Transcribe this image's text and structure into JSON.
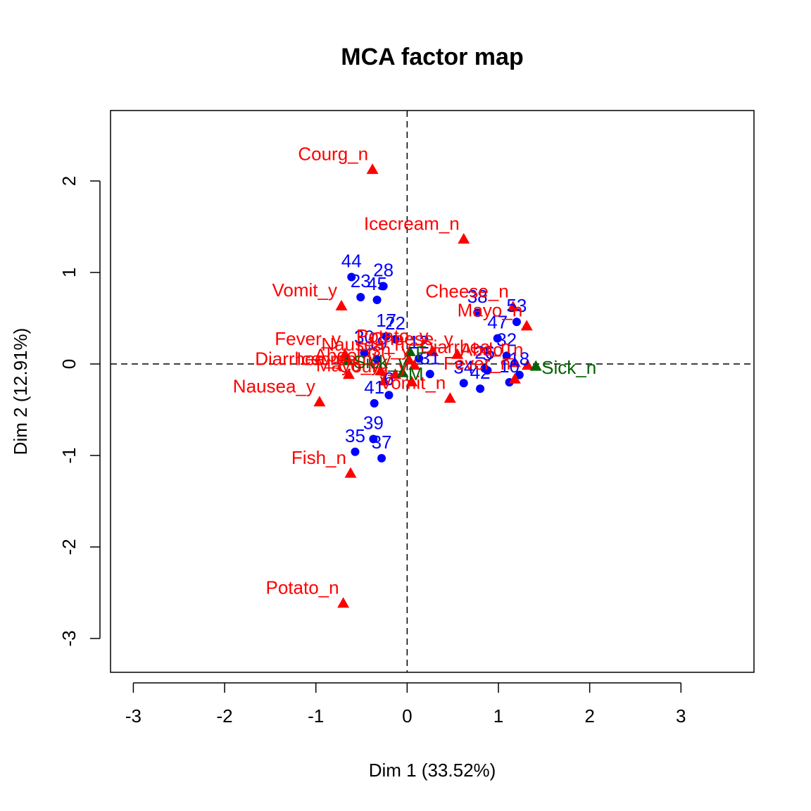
{
  "chart_data": {
    "type": "scatter",
    "title": "MCA factor map",
    "xlabel": "Dim 1 (33.52%)",
    "ylabel": "Dim 2 (12.91%)",
    "xlim": [
      -3.25,
      3.8
    ],
    "ylim": [
      -3.37,
      2.77
    ],
    "x_ticks": [
      -3,
      -2,
      -1,
      0,
      1,
      2,
      3
    ],
    "y_ticks": [
      -3,
      -2,
      -1,
      0,
      1,
      2
    ],
    "x_tick_labels": [
      "-3",
      "-2",
      "-1",
      "0",
      "1",
      "2",
      "3"
    ],
    "y_tick_labels": [
      "-3",
      "-2",
      "-1",
      "0",
      "1",
      "2"
    ],
    "reference_lines": {
      "x": 0,
      "y": 0,
      "style": "dashed"
    },
    "colors": {
      "individuals": "#0000ff",
      "active_categories": "#ff0000",
      "supplementary_categories": "#006400"
    },
    "series": [
      {
        "role": "individuals",
        "marker": "circle",
        "points": [
          {
            "label": "44",
            "x": -0.61,
            "y": 0.95
          },
          {
            "label": "28",
            "x": -0.26,
            "y": 0.85
          },
          {
            "label": "23",
            "x": -0.51,
            "y": 0.73
          },
          {
            "label": "45",
            "x": -0.33,
            "y": 0.7
          },
          {
            "label": "38",
            "x": 0.77,
            "y": 0.56
          },
          {
            "label": "53",
            "x": 1.2,
            "y": 0.46
          },
          {
            "label": "47",
            "x": 0.99,
            "y": 0.28
          },
          {
            "label": "32",
            "x": 1.09,
            "y": 0.09
          },
          {
            "label": "17",
            "x": -0.23,
            "y": 0.3
          },
          {
            "label": "22",
            "x": -0.13,
            "y": 0.27
          },
          {
            "label": "12",
            "x": 0.13,
            "y": 0.06
          },
          {
            "label": "5",
            "x": 0.88,
            "y": -0.07
          },
          {
            "label": "26",
            "x": 0.85,
            "y": -0.05
          },
          {
            "label": "10",
            "x": 1.12,
            "y": -0.2
          },
          {
            "label": "18",
            "x": 1.23,
            "y": -0.12
          },
          {
            "label": "34",
            "x": 0.62,
            "y": -0.21
          },
          {
            "label": "42",
            "x": 0.8,
            "y": -0.27
          },
          {
            "label": "31",
            "x": 0.25,
            "y": -0.11
          },
          {
            "label": "30",
            "x": -0.47,
            "y": 0.12
          },
          {
            "label": "19",
            "x": -0.33,
            "y": 0.05
          },
          {
            "label": "41",
            "x": -0.36,
            "y": -0.43
          },
          {
            "label": "6",
            "x": -0.2,
            "y": -0.34
          },
          {
            "label": "39",
            "x": -0.37,
            "y": -0.82
          },
          {
            "label": "35",
            "x": -0.57,
            "y": -0.96
          },
          {
            "label": "37",
            "x": -0.28,
            "y": -1.03
          }
        ]
      },
      {
        "role": "active_categories",
        "marker": "triangle",
        "points": [
          {
            "label": "Courg_n",
            "x": -0.38,
            "y": 2.12
          },
          {
            "label": "Icecream_n",
            "x": 0.62,
            "y": 1.36
          },
          {
            "label": "Cheese_n",
            "x": 1.16,
            "y": 0.62
          },
          {
            "label": "Mayo_n",
            "x": 1.31,
            "y": 0.41
          },
          {
            "label": "Vomit_y",
            "x": -0.72,
            "y": 0.63
          },
          {
            "label": "Potato_y",
            "x": 0.28,
            "y": 0.13
          },
          {
            "label": "Nausea_n",
            "x": 0.02,
            "y": 0.04
          },
          {
            "label": "Cheese_y",
            "x": 0.55,
            "y": 0.1
          },
          {
            "label": "Fever_y",
            "x": -0.68,
            "y": 0.1
          },
          {
            "label": "Abdo_y",
            "x": -0.29,
            "y": -0.08
          },
          {
            "label": "Diarrhea_y",
            "x": -0.64,
            "y": -0.12
          },
          {
            "label": "Diarrhea_n",
            "x": 1.18,
            "y": 0.01
          },
          {
            "label": "Abdo_n",
            "x": 1.32,
            "y": -0.02
          },
          {
            "label": "Icecream_y",
            "x": -0.13,
            "y": -0.12
          },
          {
            "label": "Mayo_y",
            "x": -0.25,
            "y": -0.19
          },
          {
            "label": "Courg_y",
            "x": 0.05,
            "y": -0.2
          },
          {
            "label": "Fish_y",
            "x": 0.08,
            "y": -0.02
          },
          {
            "label": "Fever_n",
            "x": 1.18,
            "y": -0.17
          },
          {
            "label": "Vomit_n",
            "x": 0.47,
            "y": -0.38
          },
          {
            "label": "Nausea_y",
            "x": -0.96,
            "y": -0.42
          },
          {
            "label": "Fish_n",
            "x": -0.62,
            "y": -1.2
          },
          {
            "label": "Potato_n",
            "x": -0.7,
            "y": -2.62
          }
        ]
      },
      {
        "role": "supplementary_categories",
        "marker": "triangle",
        "points": [
          {
            "label": "Sick_y",
            "x": -0.65,
            "y": 0.03
          },
          {
            "label": "Sick_n",
            "x": 1.41,
            "y": -0.03
          },
          {
            "label": "M",
            "x": -0.05,
            "y": -0.1
          },
          {
            "label": "F",
            "x": 0.03,
            "y": 0.13
          }
        ]
      }
    ]
  }
}
